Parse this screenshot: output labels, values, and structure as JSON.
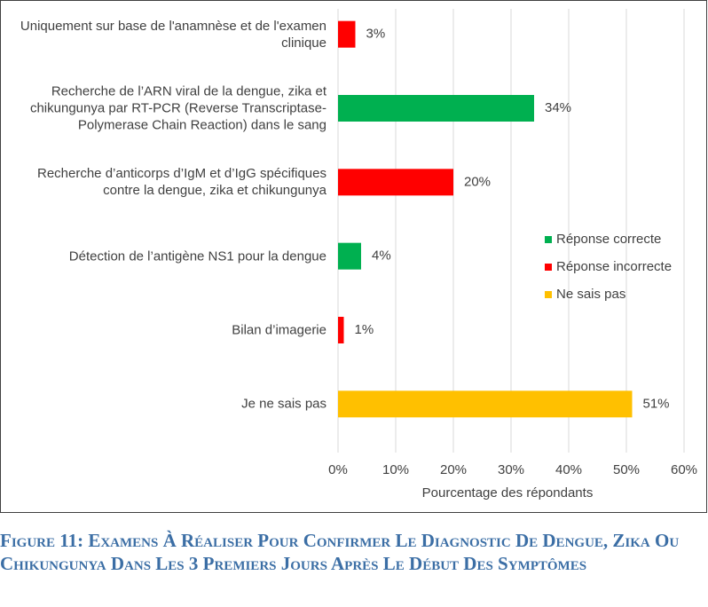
{
  "chart_data": {
    "type": "barh",
    "categories": [
      "Uniquement sur base de l'anamnèse et de l'examen clinique",
      "Recherche de l’ARN viral de la dengue, zika et chikungunya par RT-PCR (Reverse Transcriptase-Polymerase Chain Reaction) dans le sang",
      "Recherche d’anticorps d’IgM et d’IgG spécifiques contre la dengue, zika et chikungunya",
      "Détection de l’antigène NS1 pour la dengue",
      "Bilan d’imagerie",
      "Je ne sais pas"
    ],
    "values": [
      3,
      34,
      20,
      4,
      1,
      51
    ],
    "value_labels": [
      "3%",
      "34%",
      "20%",
      "4%",
      "1%",
      "51%"
    ],
    "colors": [
      "#ff0000",
      "#00b050",
      "#ff0000",
      "#00b050",
      "#ff0000",
      "#ffc000"
    ],
    "legend": [
      {
        "name": "Réponse correcte",
        "color": "#00b050"
      },
      {
        "name": "Réponse incorrecte",
        "color": "#ff0000"
      },
      {
        "name": "Ne sais pas",
        "color": "#ffc000"
      }
    ],
    "xlim": [
      0,
      60
    ],
    "xticks": [
      {
        "value": 0,
        "label": "0%"
      },
      {
        "value": 10,
        "label": "10%"
      },
      {
        "value": 20,
        "label": "20%"
      },
      {
        "value": 30,
        "label": "30%"
      },
      {
        "value": 40,
        "label": "40%"
      },
      {
        "value": 50,
        "label": "50%"
      },
      {
        "value": 60,
        "label": "60%"
      }
    ],
    "xlabel": "Pourcentage des répondants",
    "grid": true
  },
  "caption": "Figure 11: Examens À Réaliser Pour Confirmer Le Diagnostic De Dengue, Zika Ou Chikungunya Dans Les 3 Premiers Jours Après Le Début Des Symptômes"
}
